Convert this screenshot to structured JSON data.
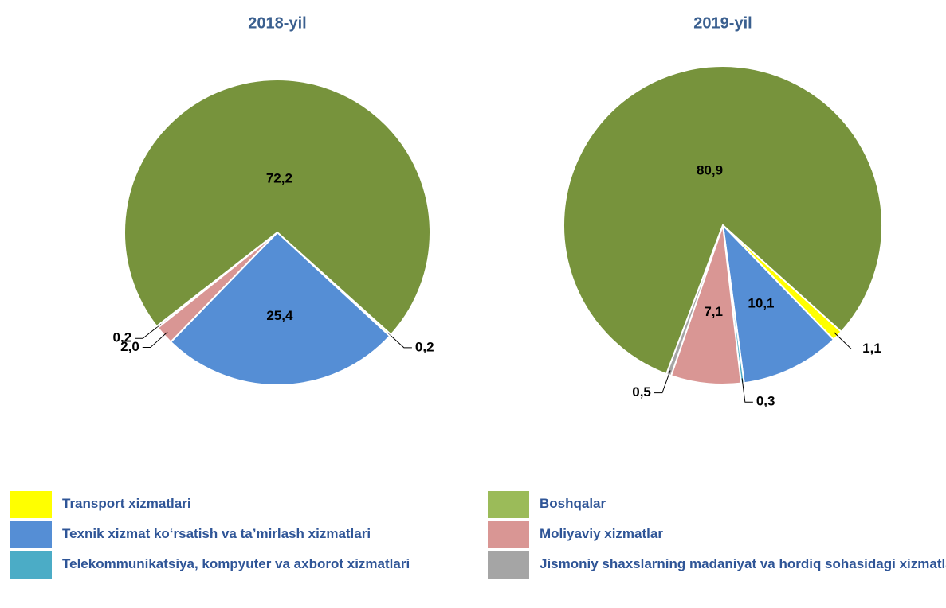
{
  "legend": {
    "items": [
      {
        "name": "Transport xizmatlari",
        "color": "#ffff00"
      },
      {
        "name": "Texnik xizmat ko‘rsatish va ta’mirlash xizmatlari",
        "color": "#558ed5"
      },
      {
        "name": "Telekommunikatsiya, kompyuter va axborot xizmatlari",
        "color": "#4bacc6"
      },
      {
        "name": "Moliyaviy xizmatlar",
        "color": "#d99694"
      },
      {
        "name": "Jismoniy shaxslarning madaniyat va hordiq sohasidagi xizmatlari",
        "color": "#a5a5a5"
      },
      {
        "name": "Boshqalar",
        "color": "#77933c"
      }
    ]
  },
  "chart_data": [
    {
      "type": "pie",
      "title": "2018-yil",
      "values": [
        0.2,
        25.4,
        null,
        2.0,
        0.2,
        72.2
      ],
      "value_labels": [
        "0,2",
        "25,4",
        null,
        "2,0",
        "0,2",
        "72,2"
      ]
    },
    {
      "type": "pie",
      "title": "2019-yil",
      "values": [
        1.1,
        10.1,
        0.3,
        7.1,
        0.5,
        80.9
      ],
      "value_labels": [
        "1,1",
        "10,1",
        "0,3",
        "7,1",
        "0,5",
        "80,9"
      ]
    }
  ]
}
